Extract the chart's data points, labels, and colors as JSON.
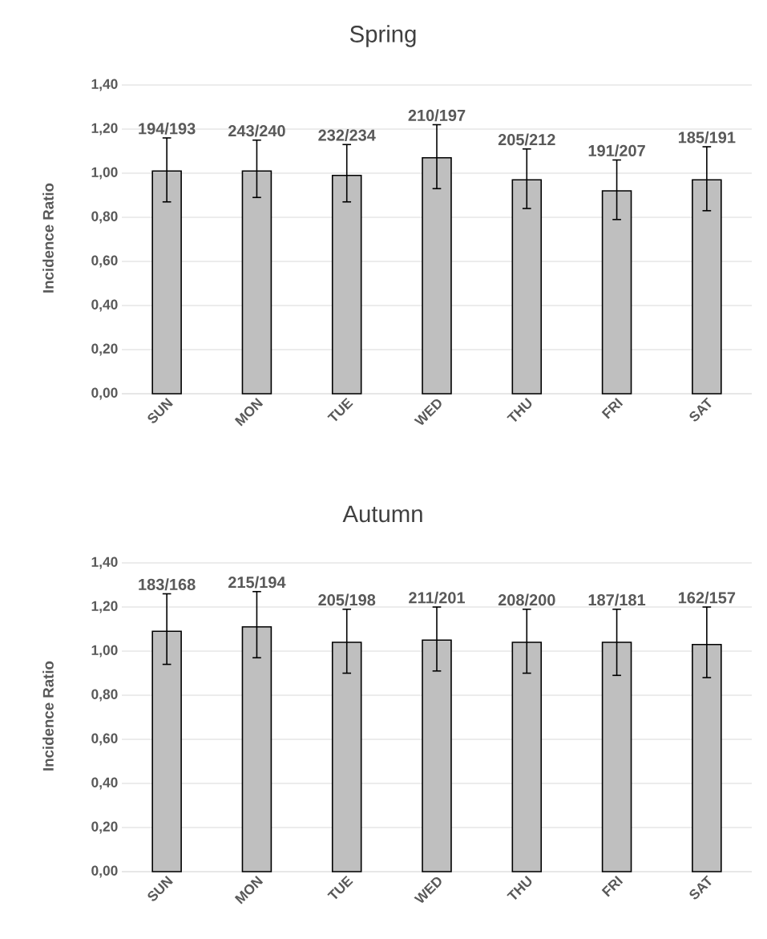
{
  "chart_data": [
    {
      "type": "bar",
      "title": "Spring",
      "ylabel": "Incidence Ratio",
      "categories": [
        "SUN",
        "MON",
        "TUE",
        "WED",
        "THU",
        "FRI",
        "SAT"
      ],
      "color": "#bfbfbf",
      "values": [
        1.01,
        1.01,
        0.99,
        1.07,
        0.97,
        0.92,
        0.97
      ],
      "errors": [
        [
          0.87,
          1.16
        ],
        [
          0.89,
          1.15
        ],
        [
          0.87,
          1.13
        ],
        [
          0.93,
          1.22
        ],
        [
          0.84,
          1.11
        ],
        [
          0.79,
          1.06
        ],
        [
          0.83,
          1.12
        ]
      ],
      "value_labels": [
        "194/193",
        "243/240",
        "232/234",
        "210/197",
        "205/212",
        "191/207",
        "185/191"
      ],
      "ylim": [
        0,
        1.4
      ],
      "yticks": [
        {
          "value": 0,
          "label": "0,00"
        },
        {
          "value": 0.2,
          "label": "0,20"
        },
        {
          "value": 0.4,
          "label": "0,40"
        },
        {
          "value": 0.6,
          "label": "0,60"
        },
        {
          "value": 0.8,
          "label": "0,80"
        },
        {
          "value": 1.0,
          "label": "1,00"
        },
        {
          "value": 1.2,
          "label": "1,20"
        },
        {
          "value": 1.4,
          "label": "1,40"
        }
      ],
      "grid": "y"
    },
    {
      "type": "bar",
      "title": "Autumn",
      "ylabel": "Incidence Ratio",
      "categories": [
        "SUN",
        "MON",
        "TUE",
        "WED",
        "THU",
        "FRI",
        "SAT"
      ],
      "color": "#bfbfbf",
      "values": [
        1.09,
        1.11,
        1.04,
        1.05,
        1.04,
        1.04,
        1.03
      ],
      "errors": [
        [
          0.94,
          1.26
        ],
        [
          0.97,
          1.27
        ],
        [
          0.9,
          1.19
        ],
        [
          0.91,
          1.2
        ],
        [
          0.9,
          1.19
        ],
        [
          0.89,
          1.19
        ],
        [
          0.88,
          1.2
        ]
      ],
      "value_labels": [
        "183/168",
        "215/194",
        "205/198",
        "211/201",
        "208/200",
        "187/181",
        "162/157"
      ],
      "ylim": [
        0,
        1.4
      ],
      "yticks": [
        {
          "value": 0,
          "label": "0,00"
        },
        {
          "value": 0.2,
          "label": "0,20"
        },
        {
          "value": 0.4,
          "label": "0,40"
        },
        {
          "value": 0.6,
          "label": "0,60"
        },
        {
          "value": 0.8,
          "label": "0,80"
        },
        {
          "value": 1.0,
          "label": "1,00"
        },
        {
          "value": 1.2,
          "label": "1,20"
        },
        {
          "value": 1.4,
          "label": "1,40"
        }
      ],
      "grid": "y"
    }
  ]
}
